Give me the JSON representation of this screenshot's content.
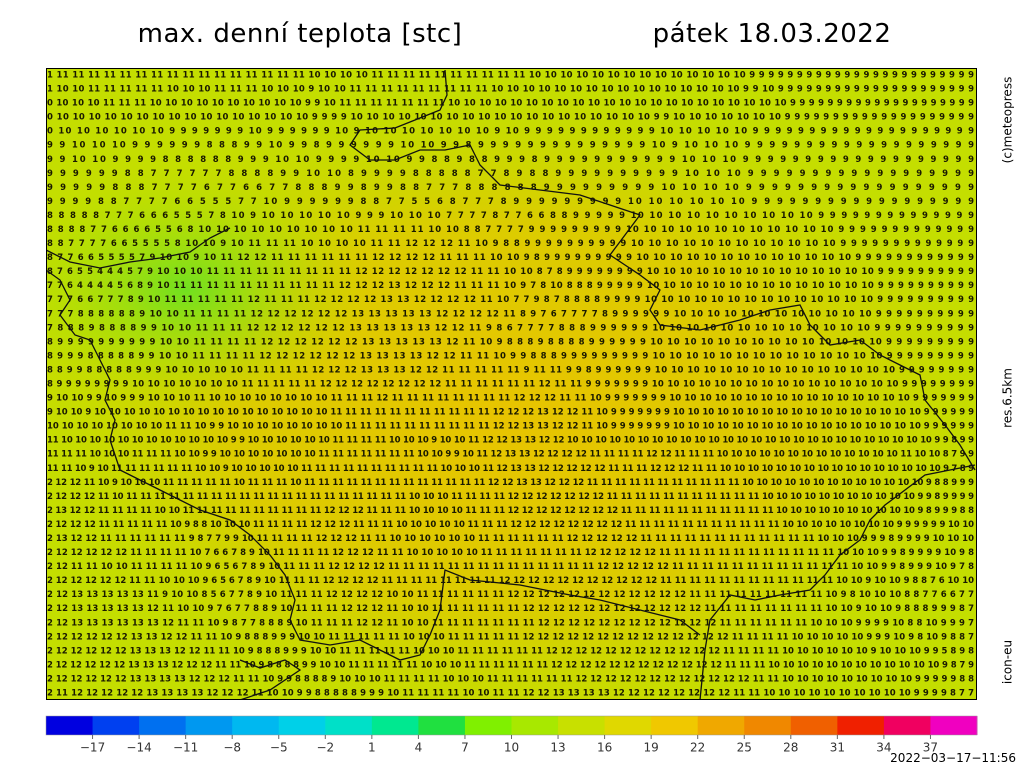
{
  "header": {
    "title": "max. denní teplota [stc]",
    "date": "pátek 18.03.2022"
  },
  "side_labels": {
    "copyright": "(c)meteopress",
    "resolution": "res.6.5km",
    "model": "icon-eu"
  },
  "timestamp": "2022−03−17−11:56",
  "grid": {
    "rows": [
      "1 11 11 11 11 11 11 11 11 11 11 11 11 11 11 11 11 10 10 10 10 11 11 11 11 11 11 11 11 11 11 10 10 10 10 10 10 10 10 10 10 10 10 10 10 9 9 9 9 9 9 9 9 9 9 9 9 9 9 9 9 9 9 9 9 9 9 9 9",
      "1 10 10 11 11 11 11 11 10 10 10 11 11 11 10 10 10 9 10 10 11 11 11 11 11 11 11 11 11 10 10 10 10 10 10 10 10 10 10 10 10 10 10 10 10 9 9 10 9 9 9 9 9 9 9 9 9 9 9 9 9 9 9 9 9 9 9 9 9",
      "0 10 10 10 11 11 11 10 10 10 10 10 10 10 10 10 10 9 9 10 11 11 11 11 11 11 11 10 10 10 10 10 10 10 10 10 10 10 10 10 10 10 10 10 10 10 10 10 10 9 9 9 9 9 9 9 9 9 9 9 9 9 9 9 9 9 9 9 9",
      "0 10 10 10 10 10 10 10 10 10 10 10 10 10 10 10 10 9 9 9 9 10 10 10 10 10 10 10 10 10 10 10 10 10 10 10 10 10 10 10 9 9 10 10 10 10 10 10 10 9 9 9 9 9 9 9 9 9 9 9 9 9 9 9 9 9 9 9 9",
      "0 10 10 10 10 10 10 9 9 9 9 9 9 9 10 9 9 9 9 9 9 10 9 10 10 10 10 10 10 10 9 10 9 9 9 9 9 9 9 9 9 9 9 9 10 10 10 10 10 9 9 9 9 9 9 9 9 9 9 9 9 9 9 9 9 9 9 9 9",
      "9 9 10 10 10 9 9 9 9 9 9 8 8 8 9 9 10 9 9 8 9 9 9 9 9 9 10 10 9 9 8 9 9 9 9 9 9 9 9 9 9 9 9 9 9 10 9 10 10 10 9 9 9 9 9 9 9 9 9 9 9 9 9 9 9 9 9 9 9",
      "9 9 10 10 9 9 9 9 8 8 8 8 8 8 9 9 9 10 10 9 9 9 9 10 10 9 9 8 8 9 8 8 9 9 9 8 9 9 9 9 9 9 9 9 9 9 9 10 10 10 9 9 9 9 9 9 9 9 9 9 9 9 9 9 9 9 9 9 9",
      "9 9 9 9 9 9 8 8 7 7 7 7 7 7 8 8 8 8 9 9 10 10 8 9 9 9 9 8 8 8 8 8 7 7 8 9 8 8 9 9 9 9 9 9 9 9 9 9 10 10 10 9 9 9 9 9 9 9 9 9 9 9 9 9 9 9 9 9 9",
      "9 9 9 9 9 8 8 8 7 7 7 7 6 7 7 6 6 7 7 8 8 8 9 9 8 9 9 8 8 7 7 7 8 8 8 8 8 8 9 9 9 9 9 9 9 9 9 10 10 10 10 9 9 9 9 9 9 9 9 9 9 9 9 9 9 9 9 9 9",
      "9 9 9 9 8 8 7 7 7 7 6 6 5 5 5 7 7 10 9 9 9 9 9 9 8 8 7 7 5 5 6 8 7 7 7 8 9 9 9 9 9 9 9 9 9 10 10 10 10 10 10 9 9 9 9 9 9 9 9 9 9 9 9 9 9 9 9 9 9",
      "8 8 8 8 8 7 7 7 6 6 6 5 5 5 7 8 10 9 10 10 10 10 10 9 9 9 10 10 10 7 7 7 7 8 7 7 6 6 8 8 9 9 9 9 9 10 10 10 10 10 10 10 10 10 10 9 9 9 9 9 9 9 9 9 9 9 9 9 9",
      "8 8 8 8 7 7 6 6 6 6 5 5 6 8 10 10 10 10 10 10 10 10 10 11 11 11 11 10 10 8 8 7 7 7 7 9 9 9 9 9 9 9 9 9 10 10 10 10 10 10 10 10 10 10 10 10 9 9 9 9 9 9 9 9 9 9 9 9 9",
      "8 8 7 7 7 7 6 6 5 5 5 5 8 10 10 9 10 11 11 11 10 10 10 10 11 11 12 12 12 11 10 9 8 8 9 9 9 9 9 9 9 9 9 9 10 10 10 10 10 10 10 10 10 10 10 10 9 9 9 9 9 9 9 9 9 9 9 9 9",
      "8 7 7 6 6 5 5 5 5 7 9 10 10 9 10 11 12 12 11 11 11 11 11 11 12 12 12 12 11 11 11 10 10 9 8 9 9 9 9 9 9 9 9 9 10 10 10 10 10 10 10 10 10 10 10 10 10 9 9 9 9 9 9 9 9 9 9 9 9",
      "8 7 6 5 5 4 4 4 5 7 9 10 10 10 11 11 11 11 11 11 11 11 11 12 12 12 12 12 12 12 11 11 10 10 8 7 8 9 9 9 9 9 9 9 9 10 10 10 10 10 10 10 10 10 10 10 10 10 10 9 9 9 9 9 9 9 9 9 9",
      "7 7 6 4 4 4 4 5 6 8 9 10 11 11 11 11 11 11 11 11 11 11 12 12 12 13 12 12 12 11 11 11 10 9 7 8 10 8 8 8 9 9 9 9 9 10 10 10 10 10 10 10 10 10 10 10 10 10 10 9 9 9 9 9 9 9 9 9 9",
      "7 7 7 6 6 7 7 7 8 9 10 11 11 11 11 11 12 11 11 11 12 12 12 12 13 13 12 12 12 12 11 10 7 7 9 8 7 8 8 8 8 9 9 9 9 10 10 10 10 10 10 10 10 10 10 10 10 10 10 9 9 9 9 9 9 9 9 9 9",
      "7 7 7 8 8 8 8 8 8 9 10 10 11 11 11 11 12 12 12 12 12 12 13 13 13 13 13 12 12 12 12 11 8 9 7 6 7 7 7 7 8 9 9 9 9 9 9 10 10 10 10 10 10 10 10 10 10 10 10 9 9 9 9 9 9 9 9 9 9",
      "7 8 8 8 9 8 8 8 8 9 9 10 10 11 11 11 12 12 12 12 12 12 13 13 13 13 13 12 12 11 9 8 6 7 7 7 7 8 8 8 9 9 9 9 9 9 10 10 10 10 10 10 10 10 10 10 10 10 10 9 9 9 9 9 9 9 9 9 9",
      "8 9 9 9 9 9 9 9 9 9 9 10 10 11 11 11 11 12 12 12 12 12 12 13 13 13 13 13 12 11 10 9 8 8 8 9 8 8 8 8 9 9 9 9 9 9 10 10 10 10 10 10 10 10 10 10 10 10 10 10 9 9 9 9 9 9 9 9 9",
      "8 9 9 9 8 8 8 8 8 9 9 10 10 11 11 11 11 12 12 12 12 12 12 13 13 13 13 12 12 11 11 10 9 9 8 8 8 9 9 9 9 9 9 9 9 9 10 10 10 10 10 10 10 10 10 10 10 10 10 10 9 9 9 9 9 9 9 9 9",
      "8 8 9 9 8 8 8 8 8 9 9 9 10 10 10 10 10 11 11 11 11 12 12 12 13 13 13 12 12 11 11 11 11 11 9 11 11 9 9 8 9 9 9 9 9 9 10 10 10 10 10 10 10 10 10 10 10 10 10 10 10 9 9 9 9 9 9 9 9",
      "8 9 9 9 9 9 9 9 9 10 10 10 10 10 10 10 11 11 11 11 11 12 12 12 12 12 12 12 12 11 11 11 11 11 11 12 11 11 9 9 9 9 9 9 9 10 10 10 10 10 10 10 10 10 10 10 10 10 10 10 10 9 9 9 9 9 9 9 9",
      "9 10 10 9 9 10 9 9 9 10 10 10 11 10 10 10 10 10 10 10 10 11 11 11 12 11 11 11 11 11 11 11 11 12 12 12 11 11 10 9 9 9 9 9 9 9 10 10 10 10 10 10 10 10 10 10 10 10 10 10 10 10 9 9 9 9 9 9 9",
      "9 10 10 9 10 10 10 10 10 10 10 10 10 10 10 10 10 10 10 10 11 11 11 11 11 11 11 11 11 11 11 12 12 12 13 12 12 11 10 9 9 9 9 9 9 9 10 10 10 10 10 10 10 10 10 10 10 10 10 10 10 10 10 9 9 9 9 9 9",
      "10 10 10 10 10 10 10 10 11 11 10 9 9 10 10 10 10 10 10 10 10 11 11 11 11 11 11 11 11 11 11 12 12 13 13 12 12 11 10 9 9 9 9 9 9 9 10 10 10 10 10 10 10 10 10 10 10 10 10 10 10 10 10 9 9 9 9 9 9",
      "11 10 10 10 10 10 10 10 10 10 10 10 10 9 9 10 10 10 10 10 10 11 11 11 11 10 10 10 9 10 10 11 12 12 13 13 12 12 10 10 10 10 10 10 10 10 10 10 10 10 10 10 10 10 10 10 10 10 10 10 10 10 10 10 9 9 8 9 9",
      "11 11 11 10 10 10 11 11 11 10 10 9 9 10 10 10 10 10 10 10 11 11 11 11 11 11 11 10 10 9 9 10 11 12 13 13 12 12 12 12 11 11 11 11 12 12 11 11 11 10 10 10 10 10 10 10 10 10 10 10 10 10 11 10 10 8 7 9 9",
      "11 11 10 9 10 11 11 11 11 11 11 10 10 9 10 10 10 10 10 11 11 11 11 11 11 11 11 11 11 10 10 10 11 12 13 13 12 12 12 12 12 11 11 11 12 12 12 11 11 10 10 10 10 10 10 10 10 10 10 10 10 10 10 10 10 9 7 8 9",
      "2 12 12 11 10 9 10 10 10 11 11 11 11 11 10 11 11 11 10 11 11 11 11 11 11 11 11 11 11 11 11 11 12 12 13 13 12 12 12 11 11 11 11 11 11 11 11 11 11 11 10 10 10 10 10 10 10 10 10 10 10 10 10 9 8 8 9 9 9",
      "2 12 12 12 11 10 11 11 11 11 11 11 11 11 11 11 11 11 11 11 11 11 11 11 11 11 10 10 10 11 11 11 11 12 12 12 12 12 12 12 11 11 11 11 11 11 11 11 11 11 11 10 10 10 10 10 10 10 10 10 10 10 9 9 8 9 9 9 9",
      "2 13 12 12 11 11 11 11 10 10 11 11 11 11 11 11 11 11 11 11 12 12 12 11 11 11 10 10 10 10 11 11 11 12 12 12 12 12 12 12 12 11 11 11 11 11 11 11 11 11 11 11 10 10 10 10 10 10 10 10 10 10 9 8 9 9 9 8 8",
      "2 12 12 12 11 11 11 11 11 10 9 8 8 10 10 10 11 11 11 11 12 12 12 11 11 11 10 10 10 10 10 11 11 11 12 12 12 12 12 12 12 12 11 11 11 11 11 11 11 11 11 11 11 10 10 10 10 10 10 10 10 9 9 9 9 9 9 10 10",
      "2 13 12 12 11 11 11 11 11 11 9 8 7 7 9 9 10 11 11 11 11 12 12 12 11 11 10 10 10 10 10 10 11 11 11 11 11 11 12 12 12 12 12 11 11 11 11 11 11 11 11 11 11 11 11 10 10 10 9 9 9 8 9 9 9 9 10 10 10",
      "2 12 12 12 12 12 11 11 11 11 10 7 6 6 7 8 9 10 11 11 11 11 12 12 12 11 11 10 10 10 10 10 11 11 11 11 11 11 11 12 12 12 12 12 11 11 11 11 11 11 11 11 11 11 11 11 10 10 10 9 9 8 9 9 9 9 10 9 8",
      "2 12 11 11 10 10 11 11 11 11 10 9 6 5 6 7 8 9 10 11 11 11 12 12 12 12 11 11 11 11 11 11 11 11 11 11 11 11 11 11 12 12 12 12 12 11 11 11 11 11 11 11 11 11 11 11 11 10 10 9 9 8 9 9 9 10 9 7 8",
      "2 12 12 12 12 12 11 11 10 10 10 9 6 5 6 7 8 9 10 11 11 11 12 12 12 12 11 11 11 11 11 11 11 11 12 12 12 12 12 12 12 12 12 12 12 11 11 11 11 11 11 11 11 11 11 11 11 10 10 9 10 10 9 8 8 7 6 10 10",
      "2 12 13 13 13 13 13 11 9 10 10 8 5 6 7 7 8 9 10 11 11 11 12 12 12 12 10 10 11 11 11 11 11 11 12 12 12 12 12 12 12 12 12 12 12 12 11 11 11 11 11 11 11 11 11 10 9 8 10 10 10 8 8 7 7 6 6 7 7",
      "2 12 13 13 13 13 13 12 11 10 10 9 7 6 7 7 8 8 9 10 11 11 11 12 12 12 11 10 10 11 11 11 11 11 11 12 12 12 12 12 12 12 12 12 12 12 12 11 11 11 11 11 11 11 11 10 10 9 10 10 9 8 8 8 9 9 9 8 7",
      "2 12 13 13 13 13 13 13 12 11 11 10 9 8 7 7 8 8 8 9 10 11 11 11 12 12 11 10 10 11 11 11 11 11 11 11 12 12 12 12 12 12 12 12 12 12 12 12 11 11 11 11 11 11 10 10 10 9 9 9 9 10 8 8 10 9 9 9 7",
      "2 12 12 12 12 12 13 13 12 12 11 11 10 9 8 8 8 9 9 9 10 10 11 11 11 11 11 10 10 10 11 11 11 11 11 12 12 12 12 12 12 12 12 12 12 12 12 12 12 11 11 11 11 10 10 10 10 10 9 9 9 10 9 8 10 9 8 8 7",
      "2 12 12 12 12 12 13 13 13 12 12 11 11 10 9 8 8 8 9 9 9 10 10 11 11 11 11 11 10 10 10 11 11 11 11 11 11 12 12 12 12 12 12 12 12 12 12 12 12 11 11 11 11 10 10 10 10 10 10 9 10 10 10 9 9 5 8 9 8",
      "2 12 12 12 12 12 13 13 13 12 12 12 11 11 10 9 8 8 8 8 9 9 10 10 11 11 11 11 11 10 10 10 11 11 11 11 11 11 12 12 12 12 12 12 12 12 12 12 12 12 11 11 11 10 10 10 10 10 10 10 10 10 10 10 10 9 8 7 9",
      "2 12 12 12 12 12 13 13 13 13 12 12 12 11 11 10 9 9 8 8 8 8 9 10 10 10 11 11 11 11 10 10 10 11 11 11 11 11 11 12 12 12 12 12 12 12 12 12 12 12 12 11 11 10 10 10 10 10 10 10 10 10 9 9 9 9 9 8 8",
      "2 11 12 12 12 12 12 13 13 13 13 12 12 12 11 10 10 9 9 8 8 8 8 8 9 9 9 10 11 11 11 11 10 10 11 11 12 12 13 13 13 13 12 12 12 12 12 12 12 12 11 11 10 10 10 10 10 10 10 10 10 10 9 9 9 9 8 7 7"
    ]
  },
  "colorbar": {
    "range": [
      -20,
      40
    ],
    "colors": [
      "#0000e0",
      "#0040f0",
      "#0070f0",
      "#0098f0",
      "#00b8f0",
      "#00d0e8",
      "#00e0c8",
      "#00e890",
      "#20e040",
      "#80f000",
      "#a8e800",
      "#c8e000",
      "#e0d800",
      "#f0c800",
      "#f0a800",
      "#f08800",
      "#f06000",
      "#f02000",
      "#f00060",
      "#f000c0"
    ],
    "ticks": [
      {
        "value": -17,
        "label": "−17"
      },
      {
        "value": -14,
        "label": "−14"
      },
      {
        "value": -11,
        "label": "−11"
      },
      {
        "value": -8,
        "label": "−8"
      },
      {
        "value": -5,
        "label": "−5"
      },
      {
        "value": -2,
        "label": "−2"
      },
      1,
      4,
      7,
      10,
      13,
      16,
      19,
      22,
      25,
      28,
      31,
      34,
      37
    ]
  }
}
